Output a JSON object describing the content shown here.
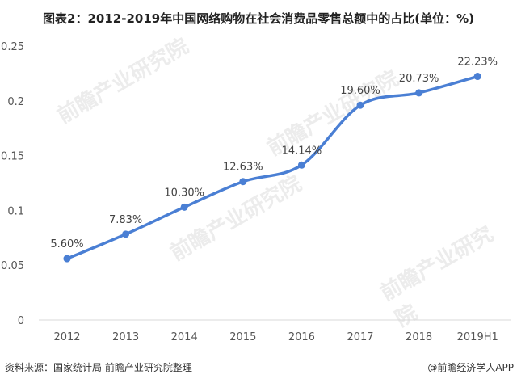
{
  "chart_data": {
    "type": "line",
    "title": "图表2：2012-2019年中国网络购物在社会消费品零售总额中的占比(单位：%)",
    "categories": [
      "2012",
      "2013",
      "2014",
      "2015",
      "2016",
      "2017",
      "2018",
      "2019H1"
    ],
    "values": [
      0.056,
      0.0783,
      0.103,
      0.1263,
      0.1414,
      0.196,
      0.2073,
      0.2223
    ],
    "data_labels": [
      "5.60%",
      "7.83%",
      "10.30%",
      "12.63%",
      "14.14%",
      "19.60%",
      "20.73%",
      "22.23%"
    ],
    "yticks": [
      "0",
      "0.05",
      "0.1",
      "0.15",
      "0.2",
      "0.25"
    ],
    "ylim": [
      0,
      0.25
    ],
    "grid": "baseline only",
    "smooth": true,
    "line_color": "#4a7fd4"
  },
  "footer": {
    "source": "资料来源：国家统计局 前瞻产业研究院整理",
    "credit": "@前瞻经济学人APP"
  },
  "watermark": "前瞻产业研究院"
}
